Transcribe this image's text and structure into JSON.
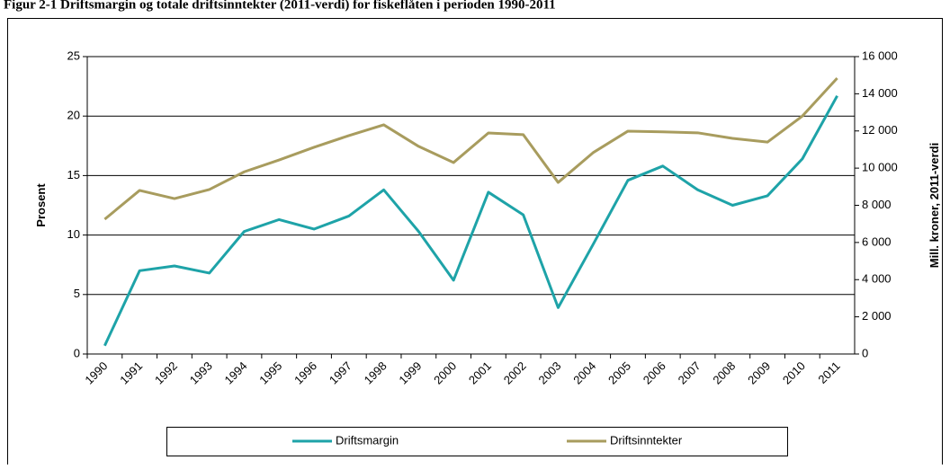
{
  "chart_data": {
    "type": "line",
    "title": "Figur 2-1 Driftsmargin og totale driftsinntekter (2011-verdi) for fiskeflåten i perioden 1990-2011",
    "y_label": "Prosent",
    "y2_label": "Mill. kroner, 2011-verdi",
    "categories": [
      "1990",
      "1991",
      "1992",
      "1993",
      "1994",
      "1995",
      "1996",
      "1997",
      "1998",
      "1999",
      "2000",
      "2001",
      "2002",
      "2003",
      "2004",
      "2005",
      "2006",
      "2007",
      "2008",
      "2009",
      "2010",
      "2011"
    ],
    "series": [
      {
        "name": "Driftsmargin",
        "color": "#1ea3a8",
        "values": [
          0.7,
          7.0,
          7.4,
          6.8,
          10.3,
          11.3,
          10.5,
          11.6,
          13.8,
          10.3,
          6.2,
          13.6,
          11.7,
          3.9,
          9.2,
          14.6,
          15.8,
          13.8,
          12.5,
          13.3,
          16.4,
          21.7
        ]
      },
      {
        "name": "Driftsinntekter",
        "color": "#a89c5e",
        "axis": "y2",
        "values": [
          7250,
          8800,
          8360,
          8850,
          9800,
          10440,
          11120,
          11750,
          12330,
          11170,
          10300,
          11890,
          11800,
          9230,
          10830,
          11990,
          11950,
          11900,
          11600,
          11400,
          12800,
          14840
        ]
      }
    ],
    "ylim": [
      0,
      25
    ],
    "yticks": [
      0,
      5,
      10,
      15,
      20,
      25
    ],
    "y2lim": [
      0,
      16000
    ],
    "y2ticks": [
      0,
      {
        "value": 2000,
        "label": "2 000"
      },
      {
        "value": 4000,
        "label": "4 000"
      },
      {
        "value": 6000,
        "label": "6 000"
      },
      {
        "value": 8000,
        "label": "8 000"
      },
      {
        "value": 10000,
        "label": "10 000"
      },
      {
        "value": 12000,
        "label": "12 000"
      },
      {
        "value": 14000,
        "label": "14 000"
      },
      {
        "value": 16000,
        "label": "16 000"
      }
    ],
    "grid": true,
    "legend": "bottom"
  }
}
